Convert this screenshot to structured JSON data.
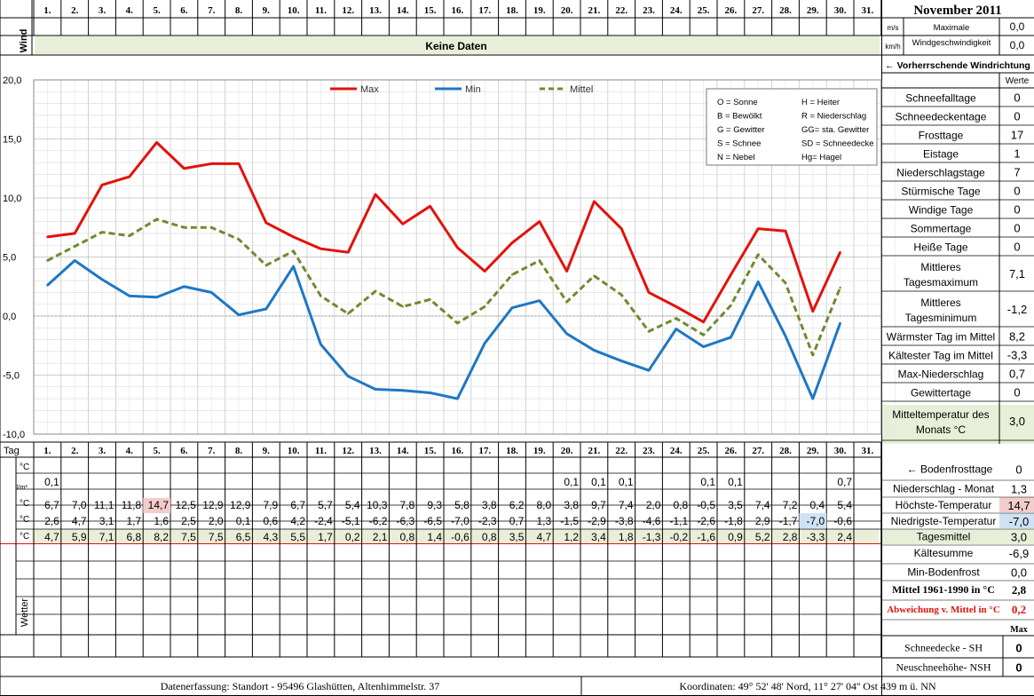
{
  "header": {
    "title": "November 2011",
    "wind_label": "Wind",
    "no_data": "Keine Daten",
    "unit_ms": "m/s",
    "unit_kmh": "km/h",
    "max_wind_label_1": "Maximale",
    "max_wind_label_2": "Windgeschwindigkeit",
    "max_wind_ms": "0,0",
    "max_wind_kmh": "0,0",
    "wind_dir_label": "← Vorherrschende Windrichtung"
  },
  "days": [
    "1.",
    "2.",
    "3.",
    "4.",
    "5.",
    "6.",
    "7.",
    "8.",
    "9.",
    "10.",
    "11.",
    "12.",
    "13.",
    "14.",
    "15.",
    "16.",
    "17.",
    "18.",
    "19.",
    "20.",
    "21.",
    "22.",
    "23.",
    "24.",
    "25.",
    "26.",
    "27.",
    "28.",
    "29.",
    "30.",
    "31."
  ],
  "legend": {
    "items": [
      {
        "name": "Max",
        "color": "#e3120b",
        "dashed": false
      },
      {
        "name": "Min",
        "color": "#1f77c4",
        "dashed": false
      },
      {
        "name": "Mittel",
        "color": "#6e8b2e",
        "dashed": true
      }
    ],
    "codes": [
      [
        "O = Sonne",
        "H = Heiter"
      ],
      [
        "B = Bewölkt",
        "R = Niederschlag"
      ],
      [
        "G = Gewitter",
        "GG= sta. Gewitter"
      ],
      [
        "S = Schnee",
        "SD = Schneedecke"
      ],
      [
        "N = Nebel",
        "Hg= Hagel"
      ]
    ]
  },
  "chart_data": {
    "type": "line",
    "x": [
      "1.",
      "2.",
      "3.",
      "4.",
      "5.",
      "6.",
      "7.",
      "8.",
      "9.",
      "10.",
      "11.",
      "12.",
      "13.",
      "14.",
      "15.",
      "16.",
      "17.",
      "18.",
      "19.",
      "20.",
      "21.",
      "22.",
      "23.",
      "24.",
      "25.",
      "26.",
      "27.",
      "28.",
      "29.",
      "30."
    ],
    "series": [
      {
        "name": "Max",
        "values": [
          6.7,
          7.0,
          11.1,
          11.8,
          14.7,
          12.5,
          12.9,
          12.9,
          7.9,
          6.7,
          5.7,
          5.4,
          10.3,
          7.8,
          9.3,
          5.8,
          3.8,
          6.2,
          8.0,
          3.8,
          9.7,
          7.4,
          2.0,
          0.8,
          -0.5,
          3.5,
          7.4,
          7.2,
          0.4,
          5.4
        ]
      },
      {
        "name": "Min",
        "values": [
          2.6,
          4.7,
          3.1,
          1.7,
          1.6,
          2.5,
          2.0,
          0.1,
          0.6,
          4.2,
          -2.4,
          -5.1,
          -6.2,
          -6.3,
          -6.5,
          -7.0,
          -2.3,
          0.7,
          1.3,
          -1.5,
          -2.9,
          -3.8,
          -4.6,
          -1.1,
          -2.6,
          -1.8,
          2.9,
          -1.7,
          -7.0,
          -0.6
        ]
      },
      {
        "name": "Mittel",
        "values": [
          4.7,
          5.9,
          7.1,
          6.8,
          8.2,
          7.5,
          7.5,
          6.5,
          4.3,
          5.5,
          1.7,
          0.2,
          2.1,
          0.8,
          1.4,
          -0.6,
          0.8,
          3.5,
          4.7,
          1.2,
          3.4,
          1.8,
          -1.3,
          -0.2,
          -1.6,
          0.9,
          5.2,
          2.8,
          -3.3,
          2.4
        ]
      }
    ],
    "yticks": [
      "20,0",
      "15,0",
      "10,0",
      "5,0",
      "0,0",
      "-5,0",
      "-10,0"
    ],
    "ylim": [
      -10,
      20
    ],
    "grid": true,
    "legend_position": "top"
  },
  "table": {
    "tag_label": "Tag",
    "unit_c": "°C",
    "unit_precip": "l/m²",
    "wetter_label": "Wetter",
    "precip": [
      "0,1",
      "",
      "",
      "",
      "",
      "",
      "",
      "",
      "",
      "",
      "",
      "",
      "",
      "",
      "",
      "",
      "",
      "",
      "",
      "0,1",
      "0,1",
      "0,1",
      "",
      "",
      "0,1",
      "0,1",
      "",
      "",
      "",
      "0,7",
      ""
    ],
    "max": [
      "6,7",
      "7,0",
      "11,1",
      "11,8",
      "14,7",
      "12,5",
      "12,9",
      "12,9",
      "7,9",
      "6,7",
      "5,7",
      "5,4",
      "10,3",
      "7,8",
      "9,3",
      "5,8",
      "3,8",
      "6,2",
      "8,0",
      "3,8",
      "9,7",
      "7,4",
      "2,0",
      "0,8",
      "-0,5",
      "3,5",
      "7,4",
      "7,2",
      "0,4",
      "5,4",
      ""
    ],
    "min": [
      "2,6",
      "4,7",
      "3,1",
      "1,7",
      "1,6",
      "2,5",
      "2,0",
      "0,1",
      "0,6",
      "4,2",
      "-2,4",
      "-5,1",
      "-6,2",
      "-6,3",
      "-6,5",
      "-7,0",
      "-2,3",
      "0,7",
      "1,3",
      "-1,5",
      "-2,9",
      "-3,8",
      "-4,6",
      "-1,1",
      "-2,6",
      "-1,8",
      "2,9",
      "-1,7",
      "-7,0",
      "-0,6",
      ""
    ],
    "mean": [
      "4,7",
      "5,9",
      "7,1",
      "6,8",
      "8,2",
      "7,5",
      "7,5",
      "6,5",
      "4,3",
      "5,5",
      "1,7",
      "0,2",
      "2,1",
      "0,8",
      "1,4",
      "-0,6",
      "0,8",
      "3,5",
      "4,7",
      "1,2",
      "3,4",
      "1,8",
      "-1,3",
      "-0,2",
      "-1,6",
      "0,9",
      "5,2",
      "2,8",
      "-3,3",
      "2,4",
      ""
    ]
  },
  "stats": {
    "werte": "Werte",
    "items": [
      {
        "label": "Schneefalltage",
        "value": "0"
      },
      {
        "label": "Schneedeckentage",
        "value": "0"
      },
      {
        "label": "Frosttage",
        "value": "17"
      },
      {
        "label": "Eistage",
        "value": "1"
      },
      {
        "label": "Niederschlagstage",
        "value": "7"
      },
      {
        "label": "Stürmische Tage",
        "value": "0"
      },
      {
        "label": "Windige Tage",
        "value": "0"
      },
      {
        "label": "Sommertage",
        "value": "0"
      },
      {
        "label": "Heiße Tage",
        "value": "0"
      },
      {
        "label": "Mittleres",
        "label2": "Tagesmaximum",
        "value": "7,1"
      },
      {
        "label": "Mittleres",
        "label2": "Tagesminimum",
        "value": "-1,2"
      },
      {
        "label": "Wärmster Tag im Mittel",
        "value": "8,2"
      },
      {
        "label": "Kältester Tag im Mittel",
        "value": "-3,3"
      },
      {
        "label": "Max-Niederschlag",
        "value": "0,7"
      },
      {
        "label": "Gewittertage",
        "value": "0"
      },
      {
        "label": "Mitteltemperatur des",
        "label2": "Monats °C",
        "value": "3,0"
      }
    ],
    "lower": [
      {
        "label": "← Bodenfrosttage",
        "value": "0"
      },
      {
        "label": "Niederschlag - Monat",
        "value": "1,3"
      },
      {
        "label": "Höchste-Temperatur",
        "value": "14,7"
      },
      {
        "label": "Niedrigste-Temperatur",
        "value": "-7,0"
      },
      {
        "label": "Tagesmittel",
        "value": "3,0"
      },
      {
        "label": "Kältesumme",
        "value": "-6,9"
      },
      {
        "label": "Min-Bodenfrost",
        "value": "0,0"
      },
      {
        "label": "Mittel 1961-1990 in °C",
        "value": "2,8"
      },
      {
        "label": "Abweichung v. Mittel in °C",
        "value": "0,2"
      },
      {
        "label": "",
        "value": "Max"
      },
      {
        "label": "Schneedecke -  SH",
        "value": "0"
      },
      {
        "label": "Neuschneehöhe- NSH",
        "value": "0"
      }
    ]
  },
  "footer": {
    "left": "Datenerfassung:  Standort -  95496  Glashütten, Altenhimmelstr. 37",
    "right": "Koordinaten:  49° 52' 48' Nord,   11° 27' 04'' Ost   439 m ü. NN"
  },
  "colors": {
    "max": "#e3120b",
    "min": "#1f77c4",
    "mean": "#6e8b2e",
    "grid": "#c8c8c8",
    "band": "#e8efd8",
    "maxcell": "#f4cccc",
    "mincell": "#cfe2f3"
  }
}
